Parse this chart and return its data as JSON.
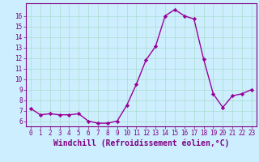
{
  "x": [
    0,
    1,
    2,
    3,
    4,
    5,
    6,
    7,
    8,
    9,
    10,
    11,
    12,
    13,
    14,
    15,
    16,
    17,
    18,
    19,
    20,
    21,
    22,
    23
  ],
  "y": [
    7.2,
    6.6,
    6.7,
    6.6,
    6.6,
    6.7,
    6.0,
    5.8,
    5.8,
    6.0,
    7.5,
    9.5,
    11.8,
    13.1,
    16.0,
    16.6,
    16.0,
    15.7,
    11.9,
    8.6,
    7.3,
    8.4,
    8.6,
    9.0
  ],
  "line_color": "#990099",
  "marker": "D",
  "marker_size": 2.2,
  "linewidth": 1.0,
  "xlabel": "Windchill (Refroidissement éolien,°C)",
  "ylabel": "",
  "title": "",
  "ylim": [
    5.5,
    17.2
  ],
  "xlim": [
    -0.5,
    23.5
  ],
  "yticks": [
    6,
    7,
    8,
    9,
    10,
    11,
    12,
    13,
    14,
    15,
    16
  ],
  "xticks": [
    0,
    1,
    2,
    3,
    4,
    5,
    6,
    7,
    8,
    9,
    10,
    11,
    12,
    13,
    14,
    15,
    16,
    17,
    18,
    19,
    20,
    21,
    22,
    23
  ],
  "bg_color": "#cceeff",
  "grid_color": "#aaddcc",
  "tick_color": "#800080",
  "label_color": "#800080",
  "tick_fontsize": 5.5,
  "xlabel_fontsize": 7.0
}
